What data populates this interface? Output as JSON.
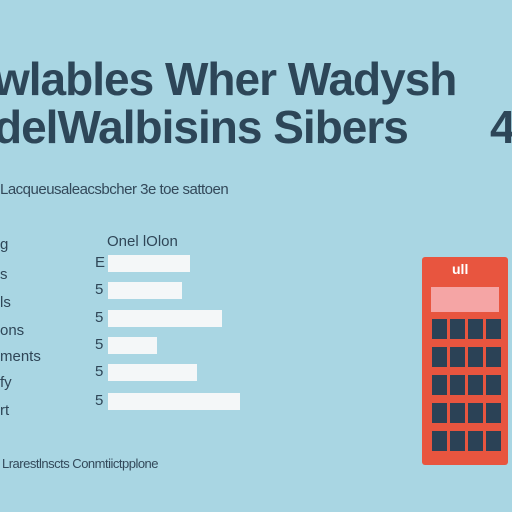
{
  "header": {
    "title_lines": [
      "wlables Wher Wadysh",
      "delWalbisins Sibers"
    ],
    "corner": "4",
    "subtitle": "Lacqueusaleacsbcher 3e toe sattoen"
  },
  "table": {
    "column_header": "Onel lOlon",
    "labels": [
      "g",
      "s",
      "ls",
      "ons",
      "ments",
      "fy",
      "rt"
    ],
    "markers": [
      "E",
      "5",
      "5",
      "5",
      "5",
      "5"
    ]
  },
  "calendar": {
    "caption": "ull"
  },
  "footer": "Lrarestlnscts Conmtiictpplone"
}
